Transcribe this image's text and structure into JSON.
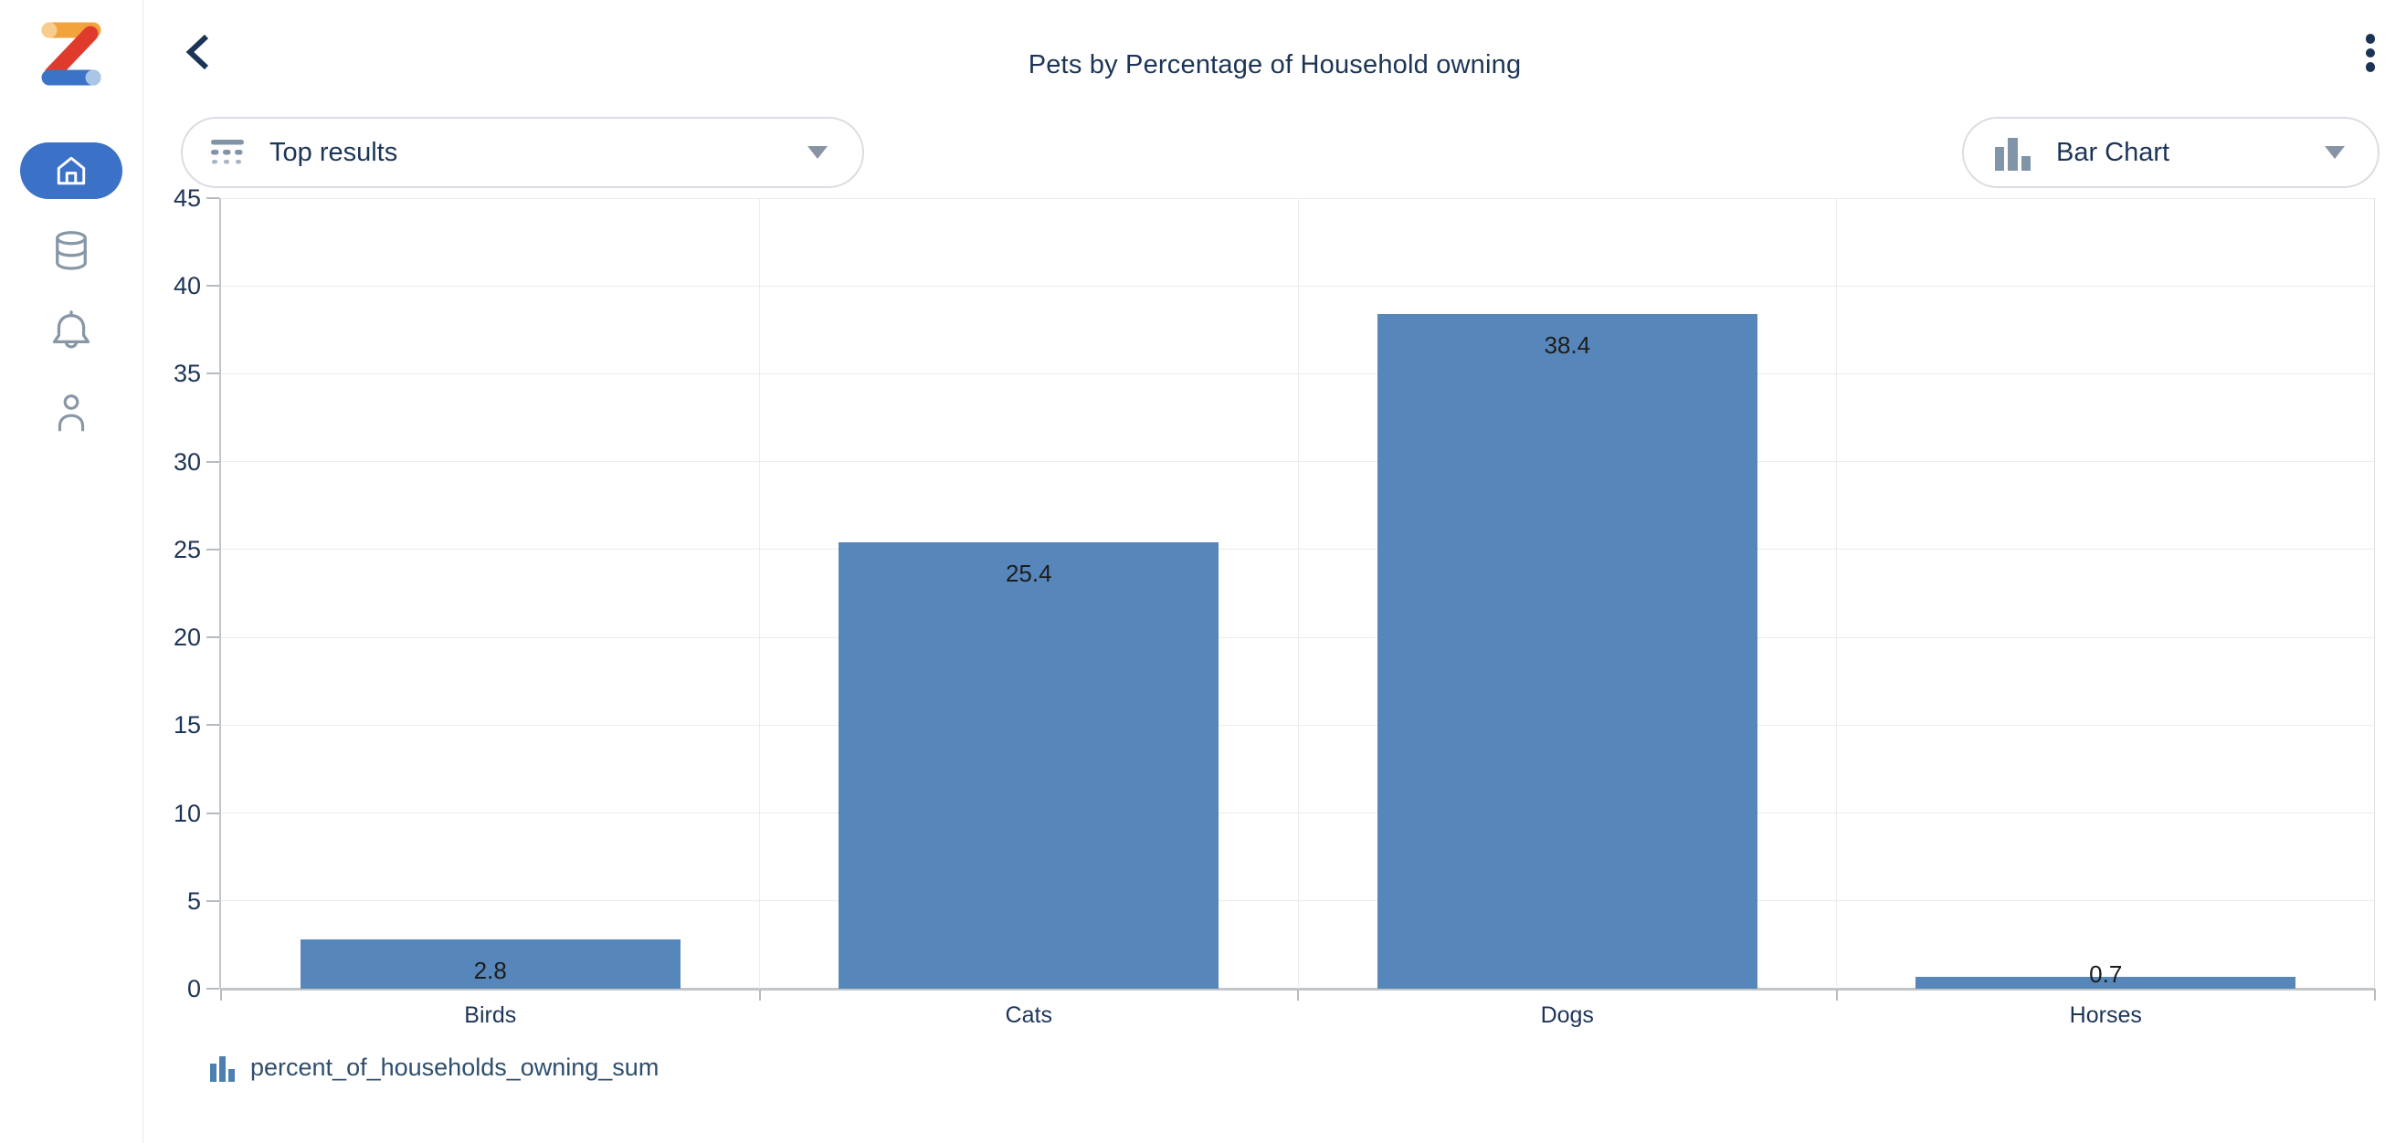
{
  "header": {
    "title": "Pets by Percentage of Household owning"
  },
  "sidebar": {
    "items": [
      {
        "name": "home",
        "icon": "home-icon",
        "active": true
      },
      {
        "name": "data",
        "icon": "database-icon",
        "active": false
      },
      {
        "name": "notifications",
        "icon": "bell-icon",
        "active": false
      },
      {
        "name": "profile",
        "icon": "user-icon",
        "active": false
      }
    ]
  },
  "toolbar": {
    "filter_label": "Top results",
    "chart_type_label": "Bar Chart"
  },
  "chart_data": {
    "type": "bar",
    "title": "Pets by Percentage of Household owning",
    "categories": [
      "Birds",
      "Cats",
      "Dogs",
      "Horses"
    ],
    "values": [
      2.8,
      25.4,
      38.4,
      0.7
    ],
    "series_name": "percent_of_households_owning_sum",
    "xlabel": "",
    "ylabel": "",
    "ylim": [
      0,
      45
    ],
    "ytick_step": 5,
    "grid": true,
    "value_labels": true,
    "legend_position": "bottom",
    "bar_color": "#5787ba"
  },
  "colors": {
    "accent_blue": "#3b71c6",
    "bar_blue": "#5787ba",
    "navy_text": "#1c3456",
    "icon_gray": "#8897a6",
    "grid_gray": "#ebecee",
    "axis_gray": "#c3c6c9"
  }
}
